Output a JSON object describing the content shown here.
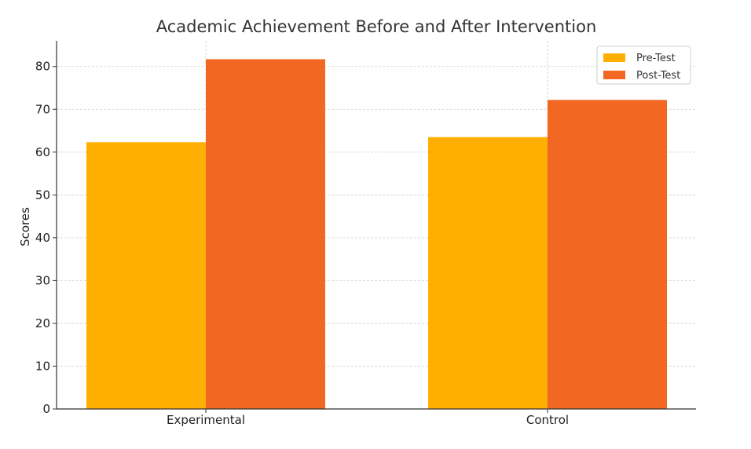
{
  "chart_data": {
    "type": "bar",
    "title": "Academic Achievement Before and After Intervention",
    "xlabel": "",
    "ylabel": "Scores",
    "categories": [
      "Experimental",
      "Control"
    ],
    "series": [
      {
        "name": "Pre-Test",
        "values": [
          62.3,
          63.5
        ],
        "color": "#FFAF02"
      },
      {
        "name": "Post-Test",
        "values": [
          81.7,
          72.2
        ],
        "color": "#F26722"
      }
    ],
    "ylim": [
      0,
      86
    ],
    "yticks": [
      0,
      10,
      20,
      30,
      40,
      50,
      60,
      70,
      80
    ],
    "grid": true,
    "legend_position": "top-right"
  }
}
